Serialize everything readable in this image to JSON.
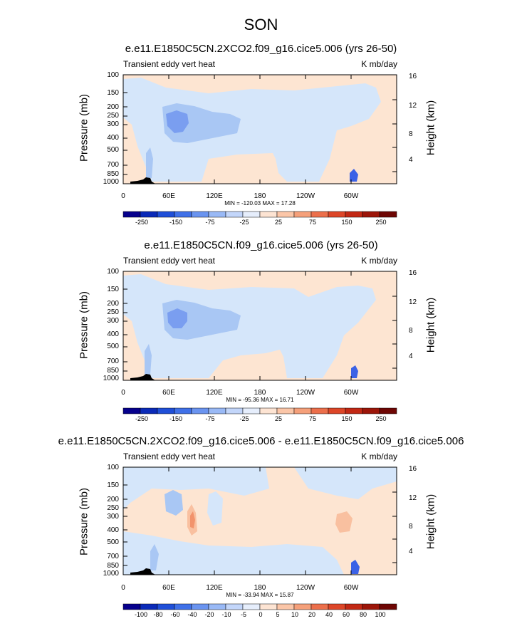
{
  "title": "SON",
  "colors": {
    "pos_light": "#fde5d2",
    "pos_med": "#f9c0a0",
    "pos_strong": "#f2936c",
    "neg_light": "#d5e6fa",
    "neg_med": "#a9c7f4",
    "neg_strong": "#7a9ef0",
    "neg_deep": "#3b62e6",
    "land": "#000000"
  },
  "chart_data": [
    {
      "type": "heatmap",
      "title": "e.e11.E1850C5CN.2XCO2.f09_g16.cice5.006 (yrs 26-50)",
      "left_label": "Transient eddy vert heat",
      "right_label": "K mb/day",
      "ylabel": "Pressure (mb)",
      "ylabel_right": "Height (km)",
      "y_ticks": [
        "100",
        "150",
        "200",
        "250",
        "300",
        "400",
        "500",
        "700",
        "850",
        "1000"
      ],
      "y_right_ticks": [
        "16",
        "12",
        "8",
        "4"
      ],
      "x_ticks": [
        "0",
        "60E",
        "120E",
        "180",
        "120W",
        "60W"
      ],
      "minmax": "MIN = -120.03  MAX =  17.28",
      "colorbar_labels": [
        "-250",
        "-150",
        "-75",
        "-25",
        "25",
        "75",
        "150",
        "250"
      ]
    },
    {
      "type": "heatmap",
      "title": "e.e11.E1850C5CN.f09_g16.cice5.006 (yrs 26-50)",
      "left_label": "Transient eddy vert heat",
      "right_label": "K mb/day",
      "ylabel": "Pressure (mb)",
      "ylabel_right": "Height (km)",
      "y_ticks": [
        "100",
        "150",
        "200",
        "250",
        "300",
        "400",
        "500",
        "700",
        "850",
        "1000"
      ],
      "y_right_ticks": [
        "16",
        "12",
        "8",
        "4"
      ],
      "x_ticks": [
        "0",
        "60E",
        "120E",
        "180",
        "120W",
        "60W"
      ],
      "minmax": "MIN = -95.36  MAX =  16.71",
      "colorbar_labels": [
        "-250",
        "-150",
        "-75",
        "-25",
        "25",
        "75",
        "150",
        "250"
      ]
    },
    {
      "type": "heatmap",
      "title": "e.e11.E1850C5CN.2XCO2.f09_g16.cice5.006 - e.e11.E1850C5CN.f09_g16.cice5.006",
      "left_label": "Transient eddy vert heat",
      "right_label": "K mb/day",
      "ylabel": "Pressure (mb)",
      "ylabel_right": "Height (km)",
      "y_ticks": [
        "100",
        "150",
        "200",
        "250",
        "300",
        "400",
        "500",
        "700",
        "850",
        "1000"
      ],
      "y_right_ticks": [
        "16",
        "12",
        "8",
        "4"
      ],
      "x_ticks": [
        "0",
        "60E",
        "120E",
        "180",
        "120W",
        "60W"
      ],
      "minmax": "MIN = -33.94  MAX =  15.87",
      "colorbar_labels": [
        "-100",
        "-80",
        "-60",
        "-40",
        "-20",
        "-10",
        "-5",
        "0",
        "5",
        "10",
        "20",
        "40",
        "60",
        "80",
        "100"
      ]
    }
  ]
}
